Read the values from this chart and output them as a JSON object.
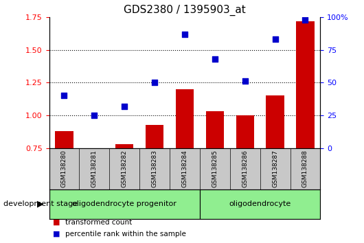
{
  "title": "GDS2380 / 1395903_at",
  "samples": [
    "GSM138280",
    "GSM138281",
    "GSM138282",
    "GSM138283",
    "GSM138284",
    "GSM138285",
    "GSM138286",
    "GSM138287",
    "GSM138288"
  ],
  "transformed_count": [
    0.88,
    0.73,
    0.78,
    0.93,
    1.2,
    1.03,
    1.0,
    1.15,
    1.72
  ],
  "percentile_rank": [
    40,
    25,
    32,
    50,
    87,
    68,
    51,
    83,
    98
  ],
  "bar_color": "#cc0000",
  "scatter_color": "#0000cc",
  "ylim_left": [
    0.75,
    1.75
  ],
  "yticks_left": [
    0.75,
    1.0,
    1.25,
    1.5,
    1.75
  ],
  "yticks_right": [
    0,
    25,
    50,
    75,
    100
  ],
  "bar_width": 0.6,
  "plot_bg_color": "white",
  "gray_bg": "#c8c8c8",
  "green_bg": "#90ee90",
  "dev_stage_label": "development stage",
  "legend_items": [
    {
      "label": "transformed count",
      "color": "#cc0000"
    },
    {
      "label": "percentile rank within the sample",
      "color": "#0000cc"
    }
  ],
  "group1_label": "oligodendrocyte progenitor",
  "group1_samples": 5,
  "group2_label": "oligodendrocyte",
  "group2_samples": 4,
  "fig_width": 5.3,
  "fig_height": 3.54,
  "title_fontsize": 11
}
